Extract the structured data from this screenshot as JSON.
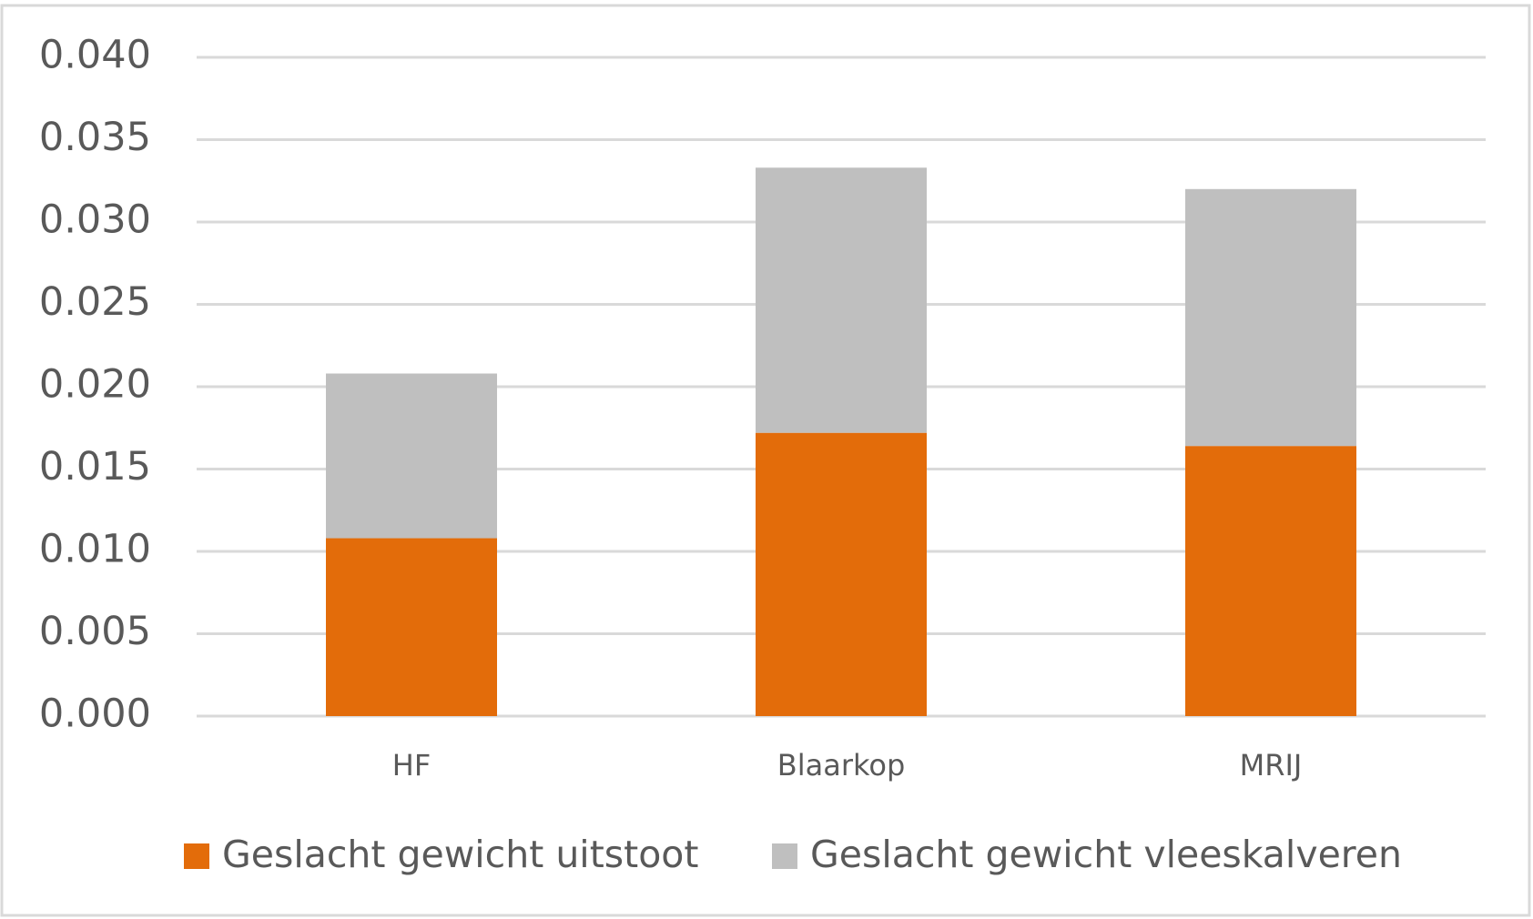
{
  "chart_data": {
    "type": "stacked_bar",
    "categories": [
      "HF",
      "Blaarkop",
      "MRIJ"
    ],
    "series": [
      {
        "name": "Geslacht gewicht uitstoot",
        "color": "#e36c0a",
        "values": [
          0.0108,
          0.0172,
          0.0164
        ]
      },
      {
        "name": "Geslacht gewicht vleeskalveren",
        "color": "#bfbfbf",
        "values": [
          0.01,
          0.0161,
          0.0156
        ]
      }
    ],
    "ylim": [
      0,
      0.04
    ],
    "yticks": [
      {
        "value": 0,
        "label": "0.000"
      },
      {
        "value": 0.005,
        "label": "0.005"
      },
      {
        "value": 0.01,
        "label": "0.010"
      },
      {
        "value": 0.015,
        "label": "0.015"
      },
      {
        "value": 0.02,
        "label": "0.020"
      },
      {
        "value": 0.025,
        "label": "0.025"
      },
      {
        "value": 0.03,
        "label": "0.030"
      },
      {
        "value": 0.035,
        "label": "0.035"
      },
      {
        "value": 0.04,
        "label": "0.040"
      }
    ],
    "grid": true,
    "legend": "bottom"
  }
}
